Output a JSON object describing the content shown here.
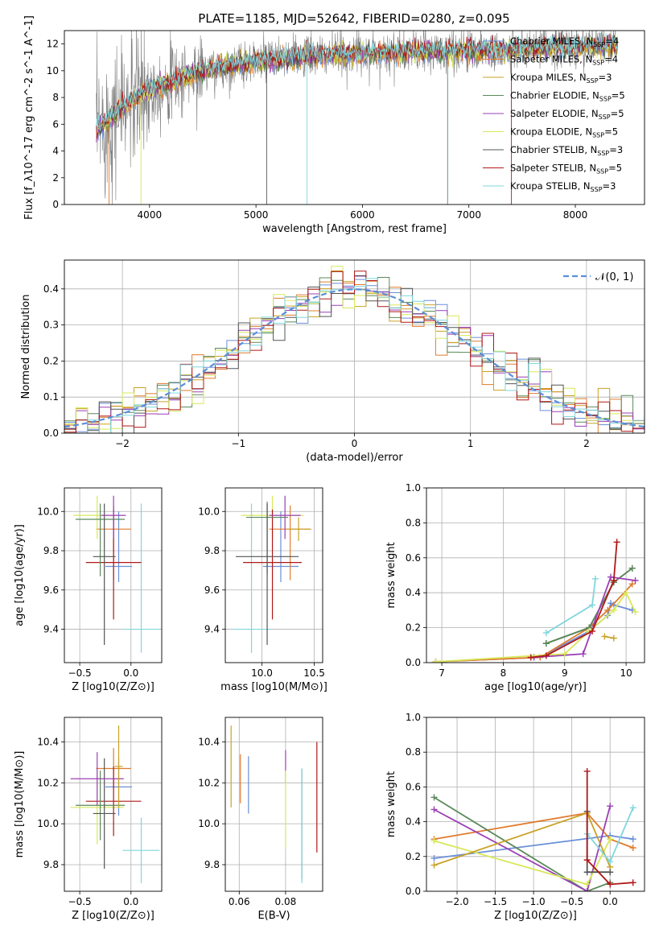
{
  "title": "PLATE=1185, MJD=52642, FIBERID=0280, z=0.095",
  "series": [
    {
      "name": "Chabrier MILES",
      "nssp": "4",
      "color": "#6a8fd9"
    },
    {
      "name": "Salpeter MILES",
      "nssp": "4",
      "color": "#e07b2e"
    },
    {
      "name": "Kroupa MILES",
      "nssp": "3",
      "color": "#c9a227"
    },
    {
      "name": "Chabrier ELODIE",
      "nssp": "5",
      "color": "#5a8a5a"
    },
    {
      "name": "Salpeter ELODIE",
      "nssp": "5",
      "color": "#9b3fb5"
    },
    {
      "name": "Kroupa ELODIE",
      "nssp": "5",
      "color": "#d7e85a"
    },
    {
      "name": "Chabrier STELIB",
      "nssp": "3",
      "color": "#555555"
    },
    {
      "name": "Salpeter STELIB",
      "nssp": "5",
      "color": "#b01818"
    },
    {
      "name": "Kroupa STELIB",
      "nssp": "3",
      "color": "#7fd6dc"
    }
  ],
  "chart_data": [
    {
      "id": "spectrum",
      "type": "line",
      "xlabel": "wavelength [Angstrom, rest frame]",
      "ylabel": "Flux [f_λ10^-17 erg cm^-2 s^-1 A^-1]",
      "xlim": [
        3200,
        8650
      ],
      "ylim": [
        0,
        13
      ],
      "xticks": [
        "4000",
        "5000",
        "6000",
        "7000",
        "8000"
      ],
      "yticks": [
        "0",
        "2",
        "4",
        "6",
        "8",
        "10",
        "12"
      ],
      "grid": false,
      "legend": "right",
      "data_color": "#808080",
      "x_range": [
        3500,
        8400
      ],
      "approx_continuum": [
        [
          3500,
          5.5
        ],
        [
          3700,
          7.0
        ],
        [
          4000,
          8.6
        ],
        [
          4500,
          10.0
        ],
        [
          5000,
          10.7
        ],
        [
          5500,
          11.1
        ],
        [
          6000,
          11.3
        ],
        [
          6500,
          11.4
        ],
        [
          7000,
          11.5
        ],
        [
          7500,
          11.6
        ],
        [
          8000,
          11.8
        ],
        [
          8400,
          11.9
        ]
      ]
    },
    {
      "id": "residuals",
      "type": "area",
      "xlabel": "(data-model)/error",
      "ylabel": "Normed distribution",
      "xlim": [
        -2.5,
        2.5
      ],
      "ylim": [
        0,
        0.48
      ],
      "xticks": [
        "−2",
        "−1",
        "0",
        "1",
        "2"
      ],
      "yticks": [
        "0.0",
        "0.1",
        "0.2",
        "0.3",
        "0.4"
      ],
      "grid": true,
      "legend": "top-right",
      "reference_label": "𝒩(0, 1)",
      "reference_color": "#5b8ed8",
      "bin_width": 0.1
    },
    {
      "id": "age-vs-Z",
      "type": "scatter",
      "xlabel": "Z [log10(Z/Z⊙)]",
      "ylabel": "age  [log10(age/yr)]",
      "xlim": [
        -0.65,
        0.3
      ],
      "ylim": [
        9.23,
        10.12
      ],
      "xticks": [
        "−0.5",
        "0.0"
      ],
      "yticks": [
        "9.4",
        "9.6",
        "9.8",
        "10.0"
      ],
      "grid": true,
      "points": [
        {
          "x": -0.12,
          "xerr": 0.13,
          "y": 9.72,
          "yerr": [
            0.08,
            0.28
          ],
          "s": 0
        },
        {
          "x": -0.17,
          "xerr": 0.17,
          "y": 9.91,
          "yerr": [
            0.26,
            0.12
          ],
          "s": 1
        },
        {
          "x": -0.33,
          "xerr": 0.23,
          "y": 9.98,
          "yerr": [
            0.12,
            0.1
          ],
          "s": 5
        },
        {
          "x": 0.1,
          "xerr": 0.18,
          "y": 9.4,
          "yerr": [
            0.12,
            0.64
          ],
          "s": 8
        },
        {
          "x": -0.17,
          "xerr": 0.27,
          "y": 9.74,
          "yerr": [
            0.29,
            0.27
          ],
          "s": 7
        },
        {
          "x": -0.3,
          "xerr": 0.24,
          "y": 9.96,
          "yerr": [
            0.29,
            0.08
          ],
          "s": 3
        },
        {
          "x": -0.26,
          "xerr": 0.11,
          "y": 9.77,
          "yerr": [
            0.45,
            0.27
          ],
          "s": 6
        },
        {
          "x": -0.17,
          "xerr": 0.12,
          "y": 9.98,
          "yerr": [
            0.12,
            0.1
          ],
          "s": 4
        }
      ]
    },
    {
      "id": "age-vs-mass",
      "type": "scatter",
      "xlabel": "mass [log10(M/M⊙)]",
      "ylabel": "",
      "xlim": [
        9.65,
        10.58
      ],
      "ylim": [
        9.23,
        10.12
      ],
      "xticks": [
        "10.0",
        "10.5"
      ],
      "yticks": [
        "9.4",
        "9.6",
        "9.8",
        "10.0"
      ],
      "grid": true,
      "points": [
        {
          "x": 10.18,
          "xerr": 0.17,
          "y": 9.72,
          "yerr": [
            0.08,
            0.28
          ],
          "s": 0
        },
        {
          "x": 10.27,
          "xerr": 0.2,
          "y": 9.91,
          "yerr": [
            0.26,
            0.12
          ],
          "s": 1
        },
        {
          "x": 10.1,
          "xerr": 0.3,
          "y": 9.98,
          "yerr": [
            0.12,
            0.1
          ],
          "s": 5
        },
        {
          "x": 9.9,
          "xerr": 0.18,
          "y": 9.4,
          "yerr": [
            0.12,
            0.64
          ],
          "s": 8
        },
        {
          "x": 10.1,
          "xerr": 0.28,
          "y": 9.74,
          "yerr": [
            0.29,
            0.27
          ],
          "s": 7
        },
        {
          "x": 10.05,
          "xerr": 0.2,
          "y": 9.97,
          "yerr": [
            0.29,
            0.08
          ],
          "s": 3
        },
        {
          "x": 10.05,
          "xerr": 0.3,
          "y": 9.77,
          "yerr": [
            0.45,
            0.27
          ],
          "s": 6
        },
        {
          "x": 10.22,
          "xerr": 0.15,
          "y": 9.98,
          "yerr": [
            0.12,
            0.1
          ],
          "s": 4
        },
        {
          "x": 10.35,
          "xerr": 0.1,
          "y": 9.91,
          "yerr": [
            0.06,
            0.06
          ],
          "s": 2
        }
      ]
    },
    {
      "id": "weight-vs-age",
      "type": "line",
      "xlabel": "age  [log10(age/yr)]",
      "ylabel": "mass weight",
      "xlim": [
        6.75,
        10.3
      ],
      "ylim": [
        0,
        1.0
      ],
      "xticks": [
        "7",
        "8",
        "9",
        "10"
      ],
      "yticks": [
        "0.0",
        "0.2",
        "0.4",
        "0.6",
        "0.8",
        "1.0"
      ],
      "grid": true,
      "lines": [
        {
          "s": 0,
          "x": [
            6.9,
            8.6,
            9.4,
            9.7,
            9.75,
            9.8,
            10.1
          ],
          "y": [
            0.005,
            0.03,
            0.18,
            0.27,
            0.34,
            0.33,
            0.3
          ]
        },
        {
          "s": 1,
          "x": [
            6.9,
            8.6,
            9.4,
            9.7,
            10.1
          ],
          "y": [
            0.005,
            0.03,
            0.2,
            0.3,
            0.45
          ]
        },
        {
          "s": 6,
          "x": [
            8.7,
            9.4,
            9.8,
            10.1
          ],
          "y": [
            0.11,
            0.2,
            0.46,
            0.54
          ]
        },
        {
          "s": 3,
          "x": [
            8.7,
            9.4,
            9.8,
            10.1
          ],
          "y": [
            0.11,
            0.2,
            0.46,
            0.54
          ]
        },
        {
          "s": 4,
          "x": [
            8.5,
            9.3,
            9.75,
            10.15
          ],
          "y": [
            0.03,
            0.05,
            0.49,
            0.47
          ]
        },
        {
          "s": 8,
          "x": [
            8.7,
            9.45,
            9.5
          ],
          "y": [
            0.17,
            0.33,
            0.48
          ]
        },
        {
          "s": 5,
          "x": [
            6.9,
            9.0,
            9.4,
            9.8,
            10.0,
            10.15
          ],
          "y": [
            0.005,
            0.05,
            0.18,
            0.3,
            0.4,
            0.29
          ]
        },
        {
          "s": 2,
          "x": [
            9.65,
            9.8
          ],
          "y": [
            0.15,
            0.14
          ]
        },
        {
          "s": 7,
          "x": [
            8.45,
            8.7,
            9.45,
            9.8,
            9.85
          ],
          "y": [
            0.03,
            0.04,
            0.18,
            0.47,
            0.69
          ]
        }
      ]
    },
    {
      "id": "mass-vs-Z",
      "type": "scatter",
      "xlabel": "Z [log10(Z/Z⊙)]",
      "ylabel": "mass [log10(M/M⊙)]",
      "xlim": [
        -0.65,
        0.3
      ],
      "ylim": [
        9.67,
        10.52
      ],
      "xticks": [
        "−0.5",
        "0.0"
      ],
      "yticks": [
        "9.8",
        "10.0",
        "10.2",
        "10.4"
      ],
      "grid": true,
      "points": [
        {
          "x": -0.12,
          "xerr": 0.13,
          "y": 10.18,
          "yerr": [
            0.14,
            0.14
          ],
          "s": 0
        },
        {
          "x": -0.17,
          "xerr": 0.17,
          "y": 10.27,
          "yerr": [
            0.1,
            0.1
          ],
          "s": 1
        },
        {
          "x": -0.33,
          "xerr": 0.26,
          "y": 10.08,
          "yerr": [
            0.18,
            0.18
          ],
          "s": 5
        },
        {
          "x": 0.1,
          "xerr": 0.18,
          "y": 9.87,
          "yerr": [
            0.16,
            0.16
          ],
          "s": 8
        },
        {
          "x": -0.17,
          "xerr": 0.27,
          "y": 10.11,
          "yerr": [
            0.17,
            0.17
          ],
          "s": 7
        },
        {
          "x": -0.3,
          "xerr": 0.24,
          "y": 10.09,
          "yerr": [
            0.17,
            0.17
          ],
          "s": 3
        },
        {
          "x": -0.26,
          "xerr": 0.11,
          "y": 10.05,
          "yerr": [
            0.27,
            0.27
          ],
          "s": 6
        },
        {
          "x": -0.33,
          "xerr": 0.26,
          "y": 10.22,
          "yerr": [
            0.13,
            0.13
          ],
          "s": 4
        },
        {
          "x": -0.12,
          "xerr": 0.04,
          "y": 10.28,
          "yerr": [
            0.2,
            0.2
          ],
          "s": 2
        }
      ]
    },
    {
      "id": "mass-vs-EBV",
      "type": "scatter",
      "xlabel": "E(B-V)",
      "ylabel": "",
      "xlim": [
        0.054,
        0.096
      ],
      "ylim": [
        9.67,
        10.52
      ],
      "xticks": [
        "0.06",
        "0.08"
      ],
      "yticks": [
        "9.8",
        "10.0",
        "10.2",
        "10.4"
      ],
      "grid": true,
      "points": [
        {
          "x": 0.0565,
          "y": 10.28,
          "yerr": [
            0.2,
            0.2
          ],
          "s": 2
        },
        {
          "x": 0.0605,
          "y": 10.22,
          "yerr": [
            0.12,
            0.12
          ],
          "s": 1
        },
        {
          "x": 0.064,
          "y": 10.19,
          "yerr": [
            0.14,
            0.14
          ],
          "s": 0
        },
        {
          "x": 0.08,
          "y": 10.28,
          "yerr": [
            0.08,
            0.08
          ],
          "s": 4
        },
        {
          "x": 0.08,
          "y": 10.07,
          "yerr": [
            0.19,
            0.19
          ],
          "s": 5
        },
        {
          "x": 0.087,
          "y": 10.0,
          "yerr": [
            0.27,
            0.27
          ],
          "s": 6
        },
        {
          "x": 0.087,
          "y": 9.99,
          "yerr": [
            0.28,
            0.28
          ],
          "s": 8
        },
        {
          "x": 0.0935,
          "y": 10.13,
          "yerr": [
            0.27,
            0.27
          ],
          "s": 7
        }
      ]
    },
    {
      "id": "weight-vs-Z",
      "type": "line",
      "xlabel": "Z [log10(Z/Z⊙)]",
      "ylabel": "mass weight",
      "xlim": [
        -2.4,
        0.45
      ],
      "ylim": [
        0,
        1.0
      ],
      "xticks": [
        "−2.0",
        "−1.5",
        "−1.0",
        "−0.5",
        "0.0"
      ],
      "yticks": [
        "0.0",
        "0.2",
        "0.4",
        "0.6",
        "0.8",
        "1.0"
      ],
      "grid": true,
      "lines": [
        {
          "s": 0,
          "x": [
            -2.3,
            0.0,
            0.3
          ],
          "y": [
            0.19,
            0.32,
            0.3
          ]
        },
        {
          "s": 1,
          "x": [
            -2.3,
            -0.3,
            0.0,
            0.3
          ],
          "y": [
            0.3,
            0.45,
            0.3,
            0.25
          ]
        },
        {
          "s": 3,
          "x": [
            -2.3,
            -0.3,
            0.0
          ],
          "y": [
            0.54,
            0.0,
            0.05
          ]
        },
        {
          "s": 4,
          "x": [
            -2.3,
            -0.3,
            0.0
          ],
          "y": [
            0.47,
            0.0,
            0.49
          ]
        },
        {
          "s": 5,
          "x": [
            -2.3,
            -0.3,
            0.0
          ],
          "y": [
            0.29,
            0.04,
            0.3
          ]
        },
        {
          "s": 2,
          "x": [
            -2.3,
            -0.3,
            0.0
          ],
          "y": [
            0.15,
            0.45,
            0.14
          ]
        },
        {
          "s": 6,
          "x": [
            -0.3,
            -0.3,
            0.0
          ],
          "y": [
            0.46,
            0.11,
            0.11
          ]
        },
        {
          "s": 8,
          "x": [
            -0.3,
            0.0,
            0.3
          ],
          "y": [
            0.33,
            0.17,
            0.48
          ]
        },
        {
          "s": 7,
          "x": [
            -0.3,
            -0.3,
            0.0,
            0.3
          ],
          "y": [
            0.69,
            0.18,
            0.04,
            0.05
          ]
        }
      ]
    }
  ]
}
